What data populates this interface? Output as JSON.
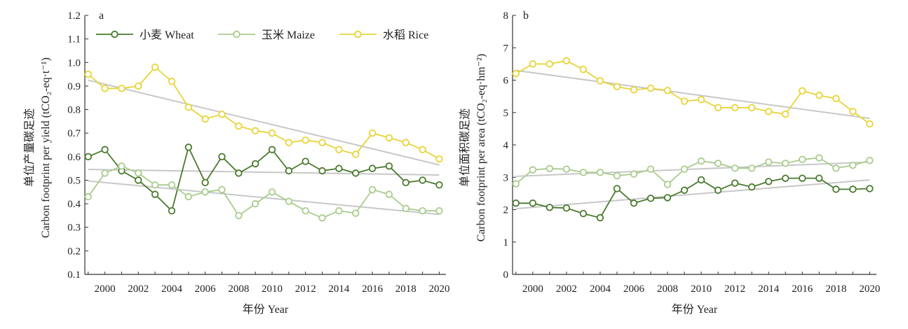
{
  "colors": {
    "wheat": "#4a7a2e",
    "maize": "#a9cc8c",
    "rice": "#e8d437",
    "trend": "#c8c8c8",
    "axis": "#333333"
  },
  "legend": {
    "wheat": "小麦 Wheat",
    "maize": "玉米 Maize",
    "rice": "水稻 Rice"
  },
  "chart_data": [
    {
      "type": "line",
      "panel_label": "a",
      "xlabel": "年份 Year",
      "ylabel_cn": "单位产量碳足迹",
      "ylabel_en": "Carbon footprint per yield (tCO₂-eq·t⁻¹)",
      "x": [
        1999,
        2000,
        2001,
        2002,
        2003,
        2004,
        2005,
        2006,
        2007,
        2008,
        2009,
        2010,
        2011,
        2012,
        2013,
        2014,
        2015,
        2016,
        2017,
        2018,
        2019,
        2020
      ],
      "xlim": [
        1998.8,
        2020.4
      ],
      "x_ticks": [
        "2000",
        "2002",
        "2004",
        "2006",
        "2008",
        "2010",
        "2012",
        "2014",
        "2016",
        "2018",
        "2020"
      ],
      "ylim": [
        0.1,
        1.2
      ],
      "y_ticks": [
        "0.1",
        "0.2",
        "0.3",
        "0.4",
        "0.5",
        "0.6",
        "0.7",
        "0.8",
        "0.9",
        "1.0",
        "1.1",
        "1.2"
      ],
      "series": [
        {
          "key": "wheat",
          "name": "小麦 Wheat",
          "values": [
            0.6,
            0.63,
            0.54,
            0.5,
            0.44,
            0.37,
            0.64,
            0.49,
            0.6,
            0.53,
            0.57,
            0.63,
            0.54,
            0.58,
            0.54,
            0.55,
            0.53,
            0.55,
            0.56,
            0.49,
            0.5,
            0.48
          ],
          "trend": [
            0.546,
            0.522
          ]
        },
        {
          "key": "maize",
          "name": "玉米 Maize",
          "values": [
            0.43,
            0.53,
            0.56,
            0.53,
            0.48,
            0.48,
            0.43,
            0.45,
            0.46,
            0.35,
            0.4,
            0.45,
            0.41,
            0.37,
            0.34,
            0.37,
            0.36,
            0.46,
            0.44,
            0.38,
            0.37,
            0.37
          ],
          "trend": [
            0.497,
            0.355
          ]
        },
        {
          "key": "rice",
          "name": "水稻 Rice",
          "values": [
            0.95,
            0.89,
            0.89,
            0.9,
            0.98,
            0.92,
            0.81,
            0.76,
            0.78,
            0.73,
            0.71,
            0.7,
            0.66,
            0.67,
            0.66,
            0.63,
            0.61,
            0.7,
            0.68,
            0.66,
            0.63,
            0.59
          ],
          "trend": [
            0.925,
            0.565
          ]
        }
      ]
    },
    {
      "type": "line",
      "panel_label": "b",
      "xlabel": "年份 Year",
      "ylabel_cn": "单位面积碳足迹",
      "ylabel_en": "Carbon footprint per area (tCO₂-eq·hm⁻²)",
      "x": [
        1999,
        2000,
        2001,
        2002,
        2003,
        2004,
        2005,
        2006,
        2007,
        2008,
        2009,
        2010,
        2011,
        2012,
        2013,
        2014,
        2015,
        2016,
        2017,
        2018,
        2019,
        2020
      ],
      "xlim": [
        1998.8,
        2020.4
      ],
      "x_ticks": [
        "2000",
        "2002",
        "2004",
        "2006",
        "2008",
        "2010",
        "2012",
        "2014",
        "2016",
        "2018",
        "2020"
      ],
      "ylim": [
        0,
        8
      ],
      "y_ticks": [
        "0",
        "1",
        "2",
        "3",
        "4",
        "5",
        "6",
        "7",
        "8"
      ],
      "series": [
        {
          "key": "wheat",
          "name": "小麦 Wheat",
          "values": [
            2.2,
            2.2,
            2.07,
            2.05,
            1.88,
            1.75,
            2.65,
            2.2,
            2.35,
            2.37,
            2.6,
            2.92,
            2.6,
            2.82,
            2.7,
            2.87,
            2.97,
            2.97,
            2.97,
            2.63,
            2.63,
            2.65
          ],
          "trend": [
            2.03,
            2.92
          ]
        },
        {
          "key": "maize",
          "name": "玉米 Maize",
          "values": [
            2.8,
            3.23,
            3.27,
            3.25,
            3.15,
            3.15,
            3.05,
            3.1,
            3.25,
            2.78,
            3.25,
            3.5,
            3.43,
            3.28,
            3.28,
            3.47,
            3.43,
            3.55,
            3.6,
            3.28,
            3.37,
            3.52
          ],
          "trend": [
            3.03,
            3.47
          ]
        },
        {
          "key": "rice",
          "name": "水稻 Rice",
          "values": [
            6.2,
            6.5,
            6.5,
            6.6,
            6.33,
            5.98,
            5.8,
            5.7,
            5.75,
            5.68,
            5.35,
            5.4,
            5.15,
            5.15,
            5.15,
            5.03,
            4.95,
            5.67,
            5.53,
            5.43,
            5.03,
            4.65
          ],
          "trend": [
            6.3,
            4.82
          ]
        }
      ]
    }
  ]
}
